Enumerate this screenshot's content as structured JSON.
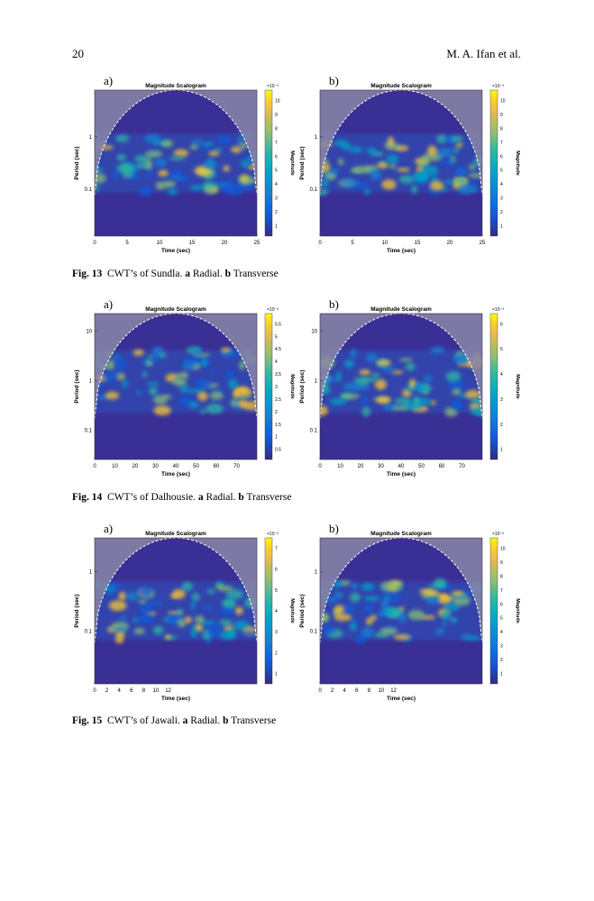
{
  "header": {
    "page_number": "20",
    "authors": "M. A. Ifan et al."
  },
  "figures": [
    {
      "caption": {
        "label": "Fig. 13",
        "text": "CWT’s of Sundla.",
        "a": "a",
        "a_text": "Radial.",
        "b": "b",
        "b_text": "Transverse"
      },
      "panels": [
        {
          "letter": "a)",
          "title": "Magnitude Scalogram",
          "xlabel": "Time (sec)",
          "ylabel": "Period (sec)",
          "xticks": [
            "0",
            "5",
            "10",
            "15",
            "20",
            "25"
          ],
          "yticks": [
            "1",
            "0.1"
          ],
          "colorbar_label": "Magnitude",
          "colorbar_exponent": "×10⁻³",
          "colorbar_ticks": [
            "1",
            "2",
            "3",
            "4",
            "5",
            "6",
            "7",
            "8",
            "9",
            "10"
          ]
        },
        {
          "letter": "b)",
          "title": "Magnitude Scalogram",
          "xlabel": "Time (sec)",
          "ylabel": "Period (sec)",
          "xticks": [
            "0",
            "5",
            "10",
            "15",
            "20",
            "25"
          ],
          "yticks": [
            "1",
            "0.1"
          ],
          "colorbar_label": "Magnitude",
          "colorbar_exponent": "×10⁻³",
          "colorbar_ticks": [
            "1",
            "2",
            "3",
            "4",
            "5",
            "6",
            "7",
            "8",
            "9",
            "10"
          ]
        }
      ]
    },
    {
      "caption": {
        "label": "Fig. 14",
        "text": "CWT’s of Dalhousie.",
        "a": "a",
        "a_text": "Radial.",
        "b": "b",
        "b_text": "Transverse"
      },
      "panels": [
        {
          "letter": "a)",
          "title": "Magnitude Scalogram",
          "xlabel": "Time (sec)",
          "ylabel": "Period (sec)",
          "xticks": [
            "0",
            "10",
            "20",
            "30",
            "40",
            "50",
            "60",
            "70"
          ],
          "yticks": [
            "10",
            "1",
            "0.1"
          ],
          "colorbar_label": "Magnitude",
          "colorbar_exponent": "×10⁻³",
          "colorbar_ticks": [
            "0.5",
            "1",
            "1.5",
            "2",
            "2.5",
            "3",
            "3.5",
            "4",
            "4.5",
            "5",
            "5.5"
          ]
        },
        {
          "letter": "b)",
          "title": "Magnitude Scalogram",
          "xlabel": "Time (sec)",
          "ylabel": "Period (sec)",
          "xticks": [
            "0",
            "10",
            "20",
            "30",
            "40",
            "50",
            "60",
            "70"
          ],
          "yticks": [
            "10",
            "1",
            "0.1"
          ],
          "colorbar_label": "Magnitude",
          "colorbar_exponent": "×10⁻³",
          "colorbar_ticks": [
            "1",
            "2",
            "3",
            "4",
            "5",
            "6"
          ]
        }
      ]
    },
    {
      "caption": {
        "label": "Fig. 15",
        "text": "CWT’s of Jawali.",
        "a": "a",
        "a_text": "Radial.",
        "b": "b",
        "b_text": "Transverse"
      },
      "panels": [
        {
          "letter": "a)",
          "title": "Magnitude Scalogram",
          "xlabel": "Time (sec)",
          "ylabel": "Period (sec)",
          "xticks": [
            "0",
            "2",
            "4",
            "6",
            "8",
            "10",
            "12"
          ],
          "yticks": [
            "1",
            "0.1"
          ],
          "colorbar_label": "Magnitude",
          "colorbar_exponent": "×10⁻³",
          "colorbar_ticks": [
            "1",
            "2",
            "3",
            "4",
            "5",
            "6",
            "7"
          ]
        },
        {
          "letter": "b)",
          "title": "Magnitude Scalogram",
          "xlabel": "Time (sec)",
          "ylabel": "Period (sec)",
          "xticks": [
            "0",
            "2",
            "4",
            "6",
            "8",
            "10",
            "12"
          ],
          "yticks": [
            "1",
            "0.1"
          ],
          "colorbar_label": "Magnitude",
          "colorbar_exponent": "×10⁻³",
          "colorbar_ticks": [
            "1",
            "2",
            "3",
            "4",
            "5",
            "6",
            "7",
            "8",
            "9",
            "10"
          ]
        }
      ]
    }
  ]
}
